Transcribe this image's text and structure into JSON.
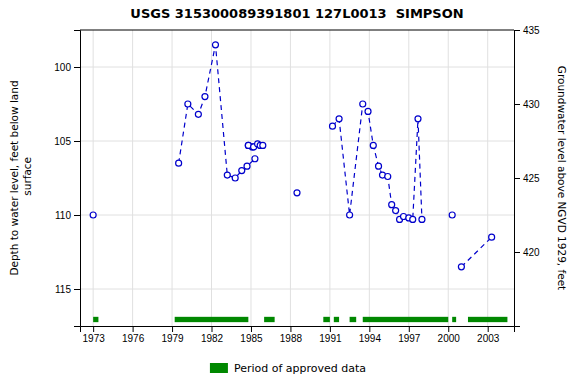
{
  "chart_data": {
    "type": "line",
    "title": "USGS 315300089391801 127L0013  SIMPSON",
    "ylabel": "Depth to water level, feet below land\n surface",
    "y2label": "Groundwater level above NGVD 1929, feet",
    "xlim": [
      1972,
      2005
    ],
    "xticks": [
      1973,
      1976,
      1979,
      1982,
      1985,
      1988,
      1991,
      1994,
      1997,
      2000,
      2003
    ],
    "ylim": [
      117.5,
      97.5
    ],
    "yticks": [
      100,
      105,
      110,
      115
    ],
    "y2lim": [
      415,
      435
    ],
    "y2ticks": [
      420,
      425,
      430,
      435
    ],
    "grid": true,
    "legend": "bottom",
    "series": [
      {
        "type": "line",
        "color": "#0000cc",
        "marker": "circle",
        "line_style": "dashed",
        "x": [
          1973.0,
          null,
          1979.5,
          1980.2,
          1981.0,
          1981.5,
          1982.3,
          1983.2,
          1983.8,
          1984.3,
          1984.7,
          1985.3,
          null,
          1984.8,
          1985.1,
          null,
          1984.8,
          1985.2,
          null,
          1985.5,
          1985.7,
          1985.9,
          null,
          1988.5,
          null,
          1991.2,
          1991.7,
          1992.5,
          1993.5,
          1993.9,
          1994.3,
          1994.7,
          1995.0,
          1995.4,
          1995.7,
          1996.0,
          1996.3,
          1996.6,
          1997.0,
          1997.3,
          1997.7,
          1998.0,
          null,
          2000.3,
          null,
          2001.0,
          2003.3
        ],
        "values": [
          110.0,
          null,
          106.5,
          102.5,
          103.2,
          102.0,
          98.5,
          107.3,
          107.5,
          107.0,
          106.7,
          106.2,
          null,
          105.3,
          105.4,
          null,
          105.3,
          105.4,
          null,
          105.2,
          105.3,
          105.3,
          null,
          108.5,
          null,
          104.0,
          103.5,
          110.0,
          102.5,
          103.0,
          105.3,
          106.7,
          107.3,
          107.4,
          109.3,
          109.7,
          110.3,
          110.1,
          110.2,
          110.3,
          103.5,
          110.3,
          null,
          110.0,
          null,
          113.5,
          111.5
        ]
      },
      {
        "type": "span",
        "name": "Period of approved data",
        "color": "#008800",
        "ranges": [
          [
            1973.0,
            1973.4
          ],
          [
            1979.2,
            1984.8
          ],
          [
            1986.0,
            1986.8
          ],
          [
            1990.5,
            1991.0
          ],
          [
            1991.3,
            1991.7
          ],
          [
            1992.5,
            1993.0
          ],
          [
            1993.5,
            2000.0
          ],
          [
            2000.3,
            2000.6
          ],
          [
            2001.5,
            2004.5
          ]
        ]
      }
    ]
  }
}
